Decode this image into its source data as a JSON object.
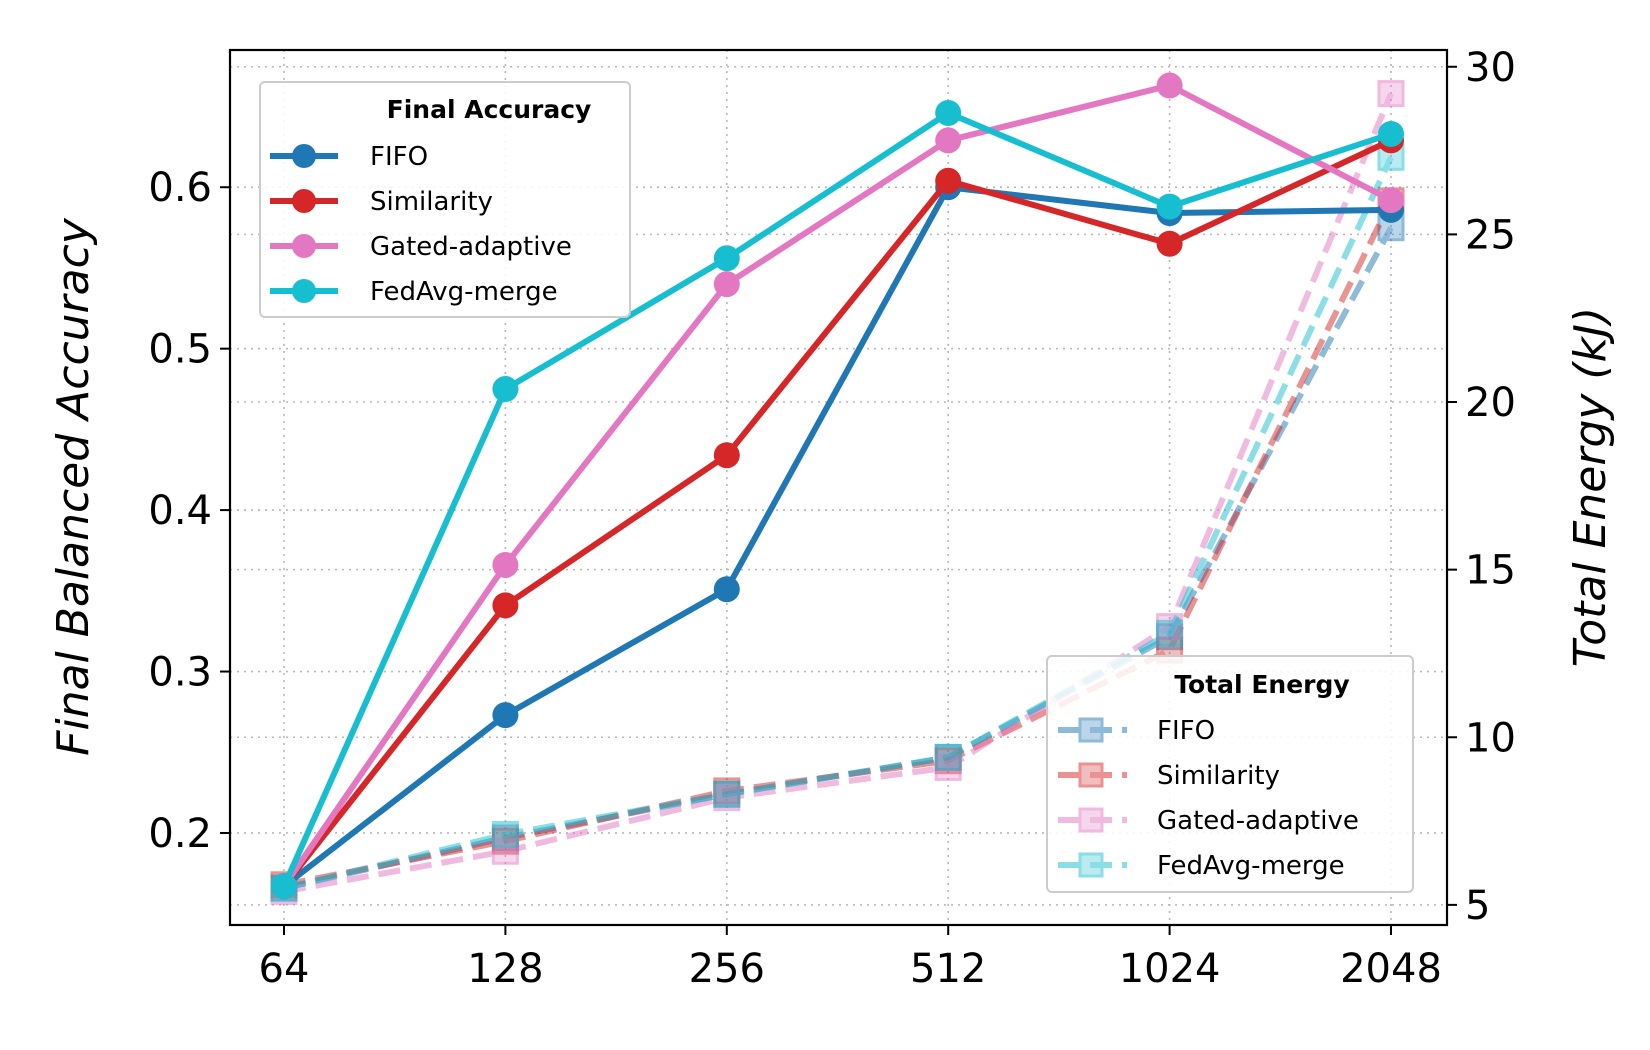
{
  "chart_data": {
    "type": "line",
    "x_categories": [
      "64",
      "128",
      "256",
      "512",
      "1024",
      "2048"
    ],
    "left_axis": {
      "label": "Final Balanced Accuracy",
      "ticks": [
        0.2,
        0.3,
        0.4,
        0.5,
        0.6
      ],
      "tick_labels": [
        "0.2",
        "0.3",
        "0.4",
        "0.5",
        "0.6"
      ],
      "ylim": [
        0.143,
        0.685
      ]
    },
    "right_axis": {
      "label": "Total Energy (kJ)",
      "ticks": [
        5,
        10,
        15,
        20,
        25,
        30
      ],
      "tick_labels": [
        "5",
        "10",
        "15",
        "20",
        "25",
        "30"
      ],
      "ylim": [
        4.4,
        30.5
      ]
    },
    "grid": true,
    "accuracy_legend": {
      "title": "Final Accuracy",
      "placement": "top-left"
    },
    "energy_legend": {
      "title": "Total Energy",
      "placement": "bottom-right"
    },
    "accuracy_series": [
      {
        "name": "FIFO",
        "color": "#1f77b4",
        "values": [
          0.167,
          0.273,
          0.351,
          0.6,
          0.584,
          0.586
        ]
      },
      {
        "name": "Similarity",
        "color": "#d62728",
        "values": [
          0.167,
          0.341,
          0.434,
          0.604,
          0.565,
          0.629
        ]
      },
      {
        "name": "Gated-adaptive",
        "color": "#e377c2",
        "values": [
          0.167,
          0.366,
          0.54,
          0.629,
          0.663,
          0.592
        ]
      },
      {
        "name": "FedAvg-merge",
        "color": "#17becf",
        "values": [
          0.167,
          0.475,
          0.556,
          0.646,
          0.588,
          0.633
        ]
      }
    ],
    "energy_series": [
      {
        "name": "FIFO",
        "color": "#1f77b4",
        "values": [
          5.5,
          7.0,
          8.3,
          9.4,
          13.0,
          25.2
        ]
      },
      {
        "name": "Similarity",
        "color": "#d62728",
        "values": [
          5.6,
          6.9,
          8.4,
          9.3,
          12.6,
          26.0
        ]
      },
      {
        "name": "Gated-adaptive",
        "color": "#e377c2",
        "values": [
          5.4,
          6.6,
          8.2,
          9.1,
          13.3,
          29.2
        ]
      },
      {
        "name": "FedAvg-merge",
        "color": "#17becf",
        "values": [
          5.5,
          7.1,
          8.3,
          9.4,
          13.1,
          27.3
        ]
      }
    ]
  }
}
